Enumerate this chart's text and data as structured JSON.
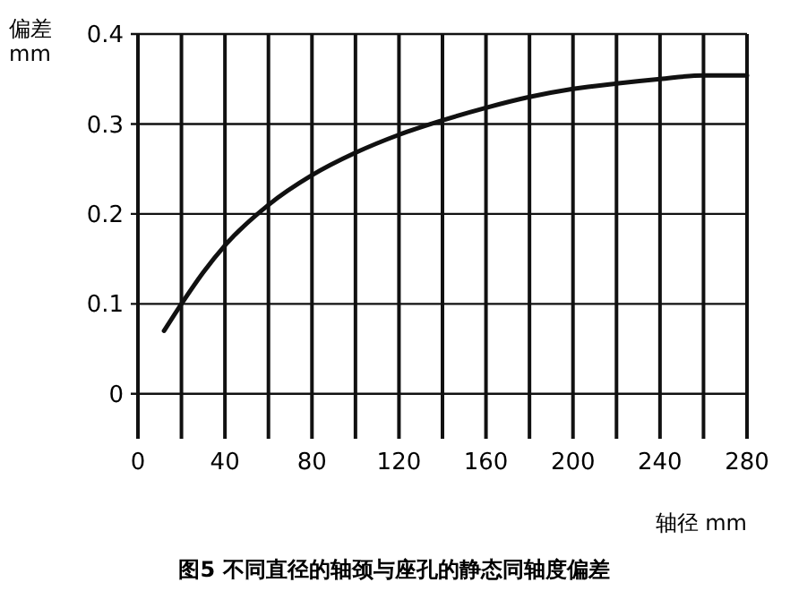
{
  "chart_data": {
    "type": "line",
    "title": "图5  不同直径的轴颈与座孔的静态同轴度偏差",
    "xlabel": "轴径 mm",
    "ylabel": "偏差 mm",
    "series": [
      {
        "color": "#111111",
        "x": [
          12,
          20,
          30,
          40,
          60,
          80,
          100,
          120,
          140,
          160,
          180,
          200,
          220,
          240,
          260,
          280
        ],
        "values": [
          0.07,
          0.1,
          0.135,
          0.165,
          0.21,
          0.243,
          0.268,
          0.288,
          0.304,
          0.318,
          0.33,
          0.339,
          0.345,
          0.35,
          0.354,
          0.354
        ]
      }
    ],
    "xlim": [
      0,
      280
    ],
    "xticks": [
      0,
      {
        "value": 20,
        "label": null
      },
      40,
      {
        "value": 60,
        "label": null
      },
      80,
      {
        "value": 100,
        "label": null
      },
      120,
      {
        "value": 140,
        "label": null
      },
      160,
      {
        "value": 180,
        "label": null
      },
      200,
      {
        "value": 220,
        "label": null
      },
      240,
      {
        "value": 260,
        "label": null
      },
      280
    ],
    "ylim": [
      -0.05,
      0.4
    ],
    "yticks": [
      0,
      0.1,
      0.2,
      0.3,
      0.4
    ],
    "grid": true,
    "marker": "none",
    "line_style": "solid"
  }
}
